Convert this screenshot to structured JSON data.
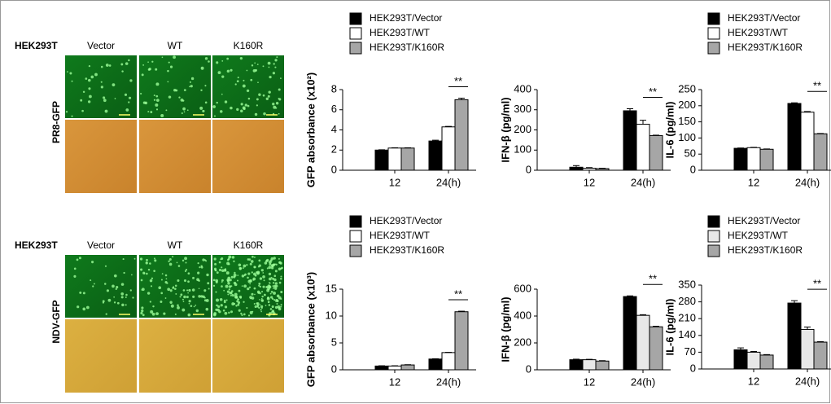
{
  "panels": [
    {
      "cell_line": "HEK293T",
      "virus": "PR8-GFP",
      "columns": [
        "Vector",
        "WT",
        "K160R"
      ]
    },
    {
      "cell_line": "HEK293T",
      "virus": "NDV-GFP",
      "columns": [
        "Vector",
        "WT",
        "K160R"
      ]
    }
  ],
  "chart_data": [
    {
      "type": "bar",
      "ylabel": "GFP absorbance (x10²)",
      "categories": [
        "12",
        "24(h)"
      ],
      "ylim": [
        0,
        8
      ],
      "yticks": [
        0,
        2,
        4,
        6,
        8
      ],
      "series": [
        {
          "name": "HEK293T/Vector",
          "color": "#000000",
          "values": [
            2.0,
            2.9
          ],
          "errors": [
            0.03,
            0.08
          ]
        },
        {
          "name": "HEK293T/WT",
          "color": "#ffffff",
          "values": [
            2.2,
            4.3
          ],
          "errors": [
            0.03,
            0.05
          ]
        },
        {
          "name": "HEK293T/K160R",
          "color": "#a6a6a6",
          "values": [
            2.2,
            7.0
          ],
          "errors": [
            0.03,
            0.15
          ]
        }
      ],
      "annotations": [
        "**"
      ]
    },
    {
      "type": "bar",
      "ylabel": "IFN-β (pg/ml)",
      "categories": [
        "12",
        "24(h)"
      ],
      "ylim": [
        0,
        400
      ],
      "yticks": [
        0,
        100,
        200,
        300,
        400
      ],
      "series": [
        {
          "color": "#000000",
          "values": [
            15,
            295
          ],
          "errors": [
            8,
            10
          ]
        },
        {
          "color": "#ffffff",
          "values": [
            10,
            228
          ],
          "errors": [
            3,
            20
          ]
        },
        {
          "color": "#a6a6a6",
          "values": [
            8,
            172
          ],
          "errors": [
            2,
            2
          ]
        }
      ],
      "annotations": [
        "**"
      ]
    },
    {
      "type": "bar",
      "ylabel": "IL-6 (pg/ml)",
      "categories": [
        "12",
        "24(h)"
      ],
      "ylim": [
        0,
        250
      ],
      "yticks": [
        0,
        50,
        100,
        150,
        200,
        250
      ],
      "series": [
        {
          "name": "HEK293T/Vector",
          "color": "#000000",
          "values": [
            68,
            207
          ],
          "errors": [
            1,
            2
          ]
        },
        {
          "name": "HEK293T/WT",
          "color": "#ffffff",
          "values": [
            70,
            180
          ],
          "errors": [
            1,
            2
          ]
        },
        {
          "name": "HEK293T/K160R",
          "color": "#a6a6a6",
          "values": [
            65,
            113
          ],
          "errors": [
            1,
            1
          ]
        }
      ],
      "annotations": [
        "**"
      ]
    },
    {
      "type": "bar",
      "ylabel": "GFP absorbance (x10³)",
      "categories": [
        "12",
        "24(h)"
      ],
      "ylim": [
        0,
        15
      ],
      "yticks": [
        0,
        5,
        10,
        15
      ],
      "series": [
        {
          "name": "HEK293T/Vector",
          "color": "#000000",
          "values": [
            0.7,
            2.0
          ],
          "errors": [
            0.05,
            0.05
          ]
        },
        {
          "name": "HEK293T/WT",
          "color": "#ffffff",
          "values": [
            0.7,
            3.2
          ],
          "errors": [
            0.05,
            0.05
          ]
        },
        {
          "name": "HEK293T/K160R",
          "color": "#a6a6a6",
          "values": [
            0.9,
            10.8
          ],
          "errors": [
            0.05,
            0.1
          ]
        }
      ],
      "annotations": [
        "**"
      ]
    },
    {
      "type": "bar",
      "ylabel": "IFN-β (pg/ml)",
      "categories": [
        "12",
        "24(h)"
      ],
      "ylim": [
        0,
        600
      ],
      "yticks": [
        0,
        200,
        400,
        600
      ],
      "series": [
        {
          "color": "#000000",
          "values": [
            75,
            545
          ],
          "errors": [
            4,
            5
          ]
        },
        {
          "color": "#e8e8e8",
          "values": [
            75,
            405
          ],
          "errors": [
            3,
            5
          ]
        },
        {
          "color": "#a6a6a6",
          "values": [
            65,
            320
          ],
          "errors": [
            3,
            4
          ]
        }
      ],
      "annotations": [
        "**"
      ]
    },
    {
      "type": "bar",
      "ylabel": "IL-6 (pg/ml)",
      "categories": [
        "12",
        "24(h)"
      ],
      "ylim": [
        0,
        350
      ],
      "yticks": [
        0,
        70,
        140,
        210,
        280,
        350
      ],
      "series": [
        {
          "name": "HEK293T/Vector",
          "color": "#000000",
          "values": [
            80,
            275
          ],
          "errors": [
            8,
            10
          ]
        },
        {
          "name": "HEK293T/WT",
          "color": "#e8e8e8",
          "values": [
            70,
            165
          ],
          "errors": [
            3,
            10
          ]
        },
        {
          "name": "HEK293T/K160R",
          "color": "#a6a6a6",
          "values": [
            58,
            112
          ],
          "errors": [
            2,
            2
          ]
        }
      ],
      "annotations": [
        "**"
      ]
    }
  ]
}
